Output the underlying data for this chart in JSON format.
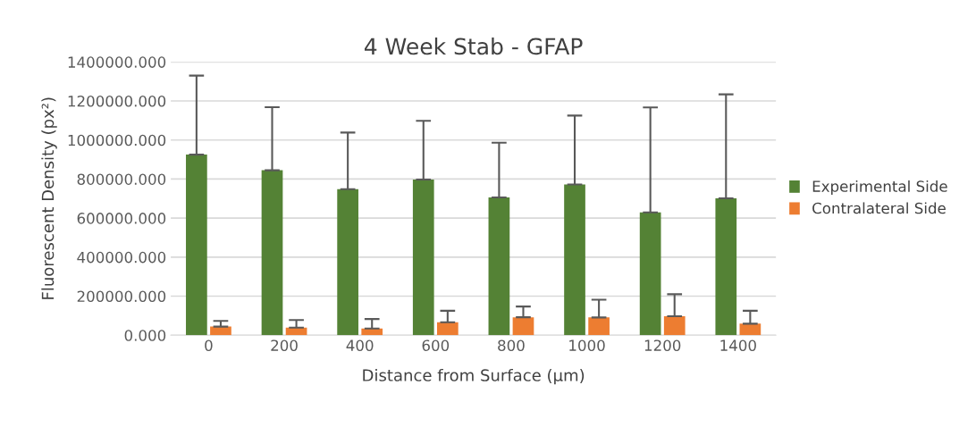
{
  "chart_data": {
    "type": "bar",
    "title": "4 Week Stab - GFAP",
    "xlabel": "Distance from Surface (µm)",
    "ylabel": "Fluorescent Density (px²)",
    "categories": [
      "0",
      "200",
      "400",
      "600",
      "800",
      "1000",
      "1200",
      "1400"
    ],
    "series": [
      {
        "name": "Experimental Side",
        "color": "#548235",
        "values": [
          925000,
          845000,
          748000,
          797000,
          706000,
          772000,
          629000,
          701000
        ],
        "errors": [
          [
            925000,
            1330000
          ],
          [
            845000,
            1168000
          ],
          [
            748000,
            1038000
          ],
          [
            797000,
            1098000
          ],
          [
            706000,
            986000
          ],
          [
            772000,
            1125000
          ],
          [
            629000,
            1167000
          ],
          [
            701000,
            1234000
          ]
        ]
      },
      {
        "name": "Contralateral Side",
        "color": "#ed7d31",
        "values": [
          44000,
          39000,
          34000,
          66000,
          92000,
          91000,
          97000,
          59000
        ],
        "errors": [
          [
            44000,
            73000
          ],
          [
            39000,
            78000
          ],
          [
            34000,
            83000
          ],
          [
            66000,
            125000
          ],
          [
            92000,
            147000
          ],
          [
            91000,
            182000
          ],
          [
            97000,
            210000
          ],
          [
            59000,
            125000
          ]
        ]
      }
    ],
    "ylim": [
      0,
      1400000
    ],
    "yticks": [
      {
        "value": 0,
        "label": "0.000"
      },
      {
        "value": 200000,
        "label": "200000.000"
      },
      {
        "value": 400000,
        "label": "400000.000"
      },
      {
        "value": 600000,
        "label": "600000.000"
      },
      {
        "value": 800000,
        "label": "800000.000"
      },
      {
        "value": 1000000,
        "label": "1000000.000"
      },
      {
        "value": 1200000,
        "label": "1200000.000"
      },
      {
        "value": 1400000,
        "label": "1400000.000"
      }
    ],
    "grid": "y",
    "legend": "right"
  }
}
